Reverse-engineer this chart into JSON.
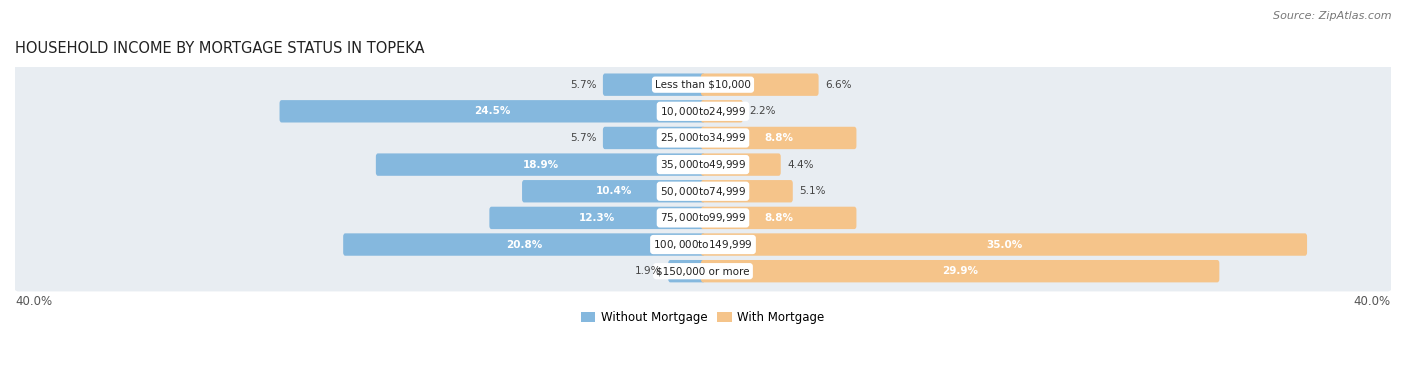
{
  "title": "HOUSEHOLD INCOME BY MORTGAGE STATUS IN TOPEKA",
  "source": "Source: ZipAtlas.com",
  "categories": [
    "Less than $10,000",
    "$10,000 to $24,999",
    "$25,000 to $34,999",
    "$35,000 to $49,999",
    "$50,000 to $74,999",
    "$75,000 to $99,999",
    "$100,000 to $149,999",
    "$150,000 or more"
  ],
  "without_mortgage": [
    5.7,
    24.5,
    5.7,
    18.9,
    10.4,
    12.3,
    20.8,
    1.9
  ],
  "with_mortgage": [
    6.6,
    2.2,
    8.8,
    4.4,
    5.1,
    8.8,
    35.0,
    29.9
  ],
  "color_without": "#85b8de",
  "color_with": "#f5c48a",
  "background_row_color": "#e8edf2",
  "axis_max": 40.0,
  "axis_label_left": "40.0%",
  "axis_label_right": "40.0%",
  "legend_label_without": "Without Mortgage",
  "legend_label_with": "With Mortgage",
  "title_fontsize": 10.5,
  "source_fontsize": 8,
  "bar_label_fontsize": 7.5,
  "category_fontsize": 7.5,
  "legend_fontsize": 8.5,
  "axis_tick_fontsize": 8.5,
  "label_inside_threshold": 8.0
}
